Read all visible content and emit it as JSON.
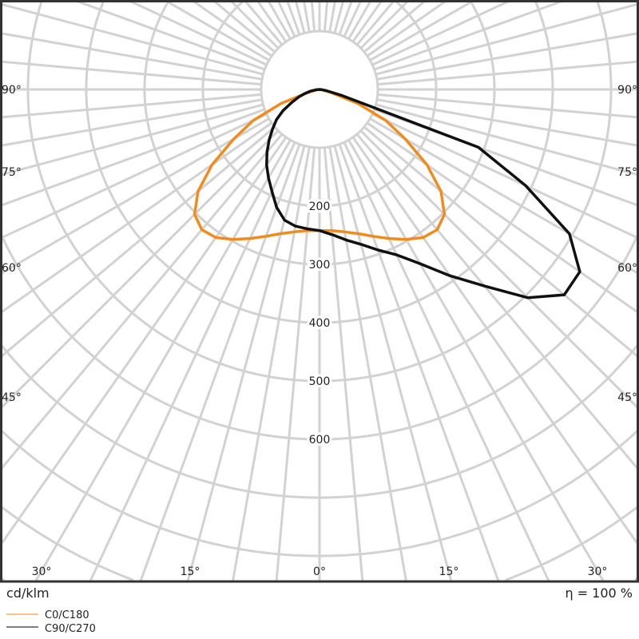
{
  "chart_data": {
    "type": "polar",
    "unit_label": "cd/klm",
    "efficiency_label": "η = 100 %",
    "radial_ticks": [
      200,
      300,
      400,
      500,
      600
    ],
    "radial_tick_labels": [
      "200",
      "300",
      "400",
      "500",
      "600"
    ],
    "angle_tick_labels": {
      "left": [
        "90°",
        "75°",
        "60°",
        "45°"
      ],
      "right": [
        "90°",
        "75°",
        "60°",
        "45°"
      ],
      "bottom": [
        "30°",
        "15°",
        "0°",
        "15°",
        "30°"
      ]
    },
    "grid": true,
    "legend_position": "bottom-left",
    "angles": [
      -90,
      -85,
      -80,
      -75,
      -70,
      -65,
      -60,
      -55,
      -50,
      -45,
      -40,
      -35,
      -30,
      -25,
      -20,
      -15,
      -10,
      -5,
      0,
      5,
      10,
      15,
      20,
      25,
      30,
      35,
      40,
      45,
      50,
      55,
      60,
      65,
      70,
      75,
      80,
      85,
      90
    ],
    "series": [
      {
        "name": "C0/C180",
        "color": "#f08c1e",
        "values": [
          0,
          0,
          5,
          20,
          70,
          125,
          170,
          225,
          272,
          303,
          314,
          310,
          297,
          282,
          268,
          256,
          248,
          243,
          242,
          243,
          248,
          256,
          268,
          282,
          297,
          310,
          314,
          303,
          272,
          225,
          170,
          125,
          70,
          20,
          5,
          0,
          0
        ]
      },
      {
        "name": "C90/C270",
        "color": "#111111",
        "values": [
          0,
          6,
          15,
          25,
          38,
          52,
          72,
          90,
          105,
          122,
          140,
          158,
          175,
          193,
          215,
          232,
          238,
          240,
          242,
          250,
          262,
          275,
          293,
          313,
          345,
          390,
          440,
          505,
          548,
          545,
          495,
          390,
          290,
          40,
          12,
          4,
          0
        ]
      }
    ]
  }
}
